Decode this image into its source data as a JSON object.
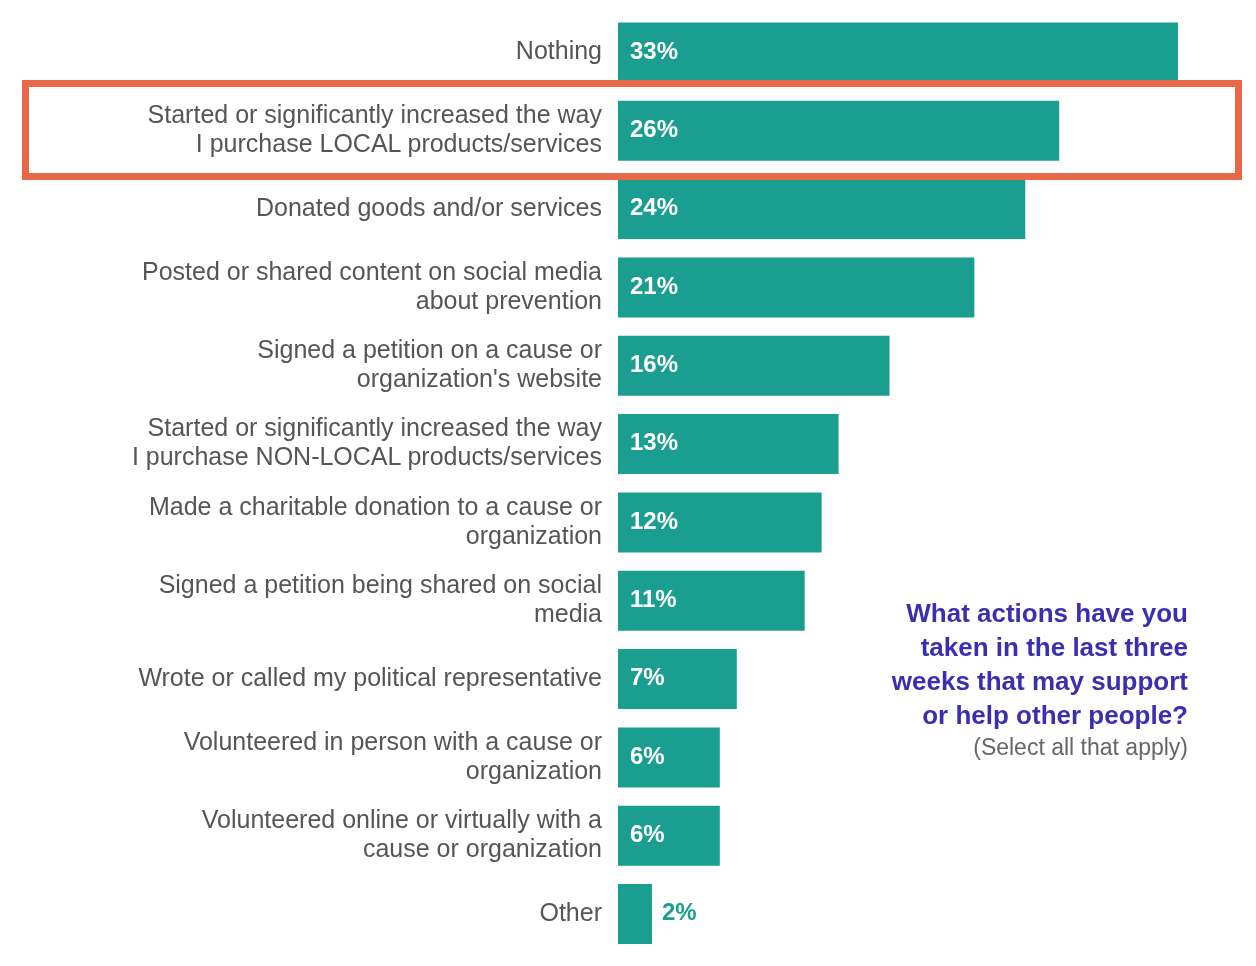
{
  "chart_data": {
    "type": "bar",
    "orientation": "horizontal",
    "title": "What actions have you taken in the last three weeks that may support or help other people?",
    "subtitle": "(Select all that apply)",
    "categories": [
      "Nothing",
      "Started or significantly increased the way I purchase LOCAL products/services",
      "Donated goods and/or services",
      "Posted or shared content on social media about prevention",
      "Signed a petition on a cause or organization's website",
      "Started or significantly increased the way I purchase NON-LOCAL products/services",
      "Made a charitable donation to a cause or organization",
      "Signed a petition being shared on social media",
      "Wrote or called my political representative",
      "Volunteered in person with a cause or organization",
      "Volunteered online or virtually with a cause or organization",
      "Other"
    ],
    "values": [
      33,
      26,
      24,
      21,
      16,
      13,
      12,
      11,
      7,
      6,
      6,
      2
    ],
    "value_labels": [
      "33%",
      "26%",
      "24%",
      "21%",
      "16%",
      "13%",
      "12%",
      "11%",
      "7%",
      "6%",
      "6%",
      "2%"
    ],
    "color": "#1a9e8f",
    "tick_labels": "y"
  }
}
